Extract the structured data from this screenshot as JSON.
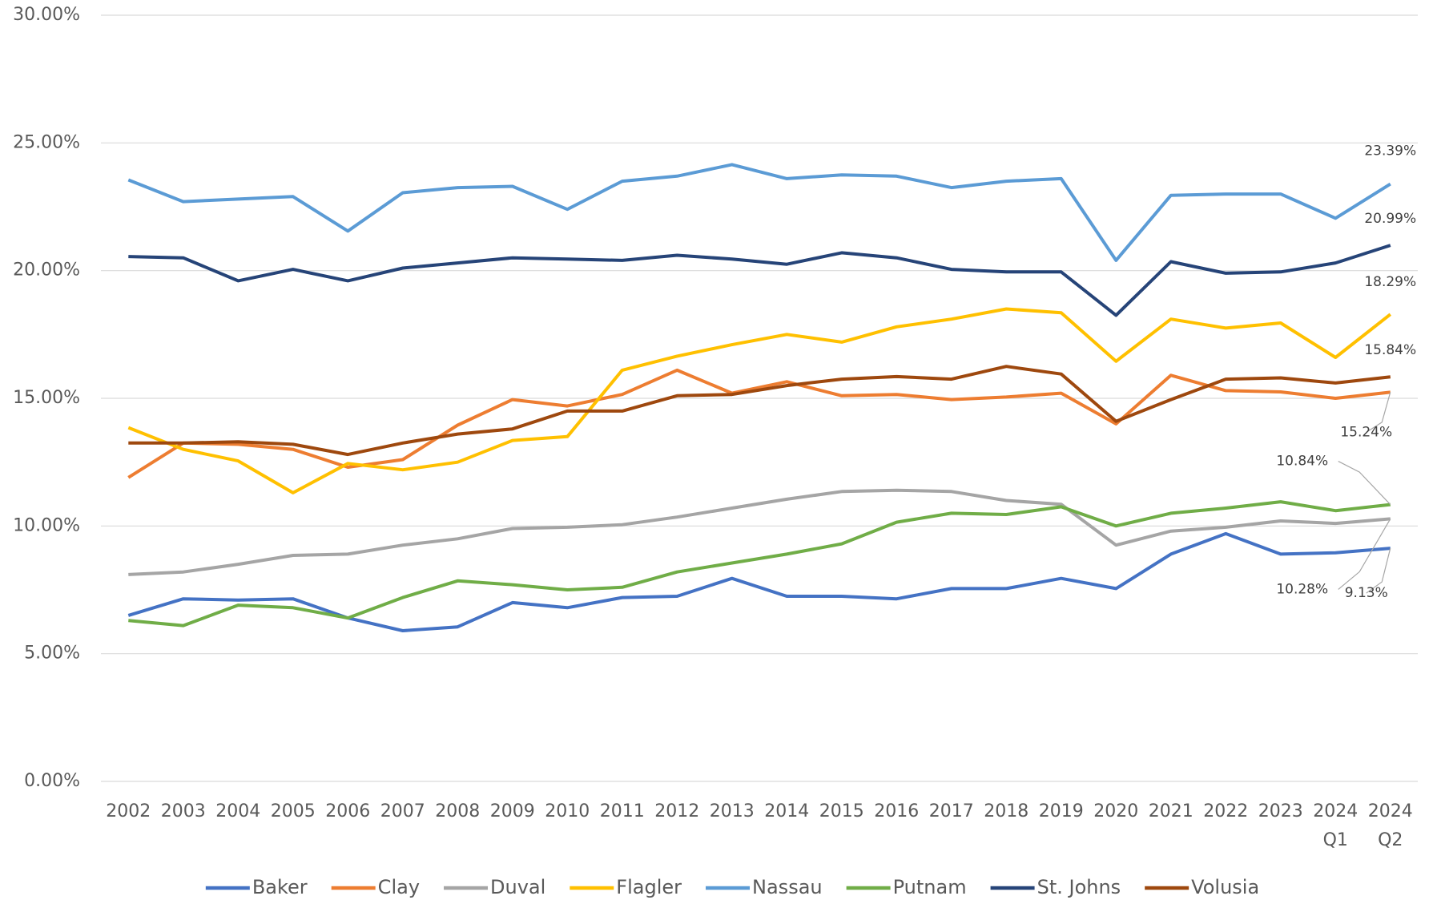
{
  "chart_data": {
    "type": "line",
    "categories": [
      "2002",
      "2003",
      "2004",
      "2005",
      "2006",
      "2007",
      "2008",
      "2009",
      "2010",
      "2011",
      "2012",
      "2013",
      "2014",
      "2015",
      "2016",
      "2017",
      "2018",
      "2019",
      "2020",
      "2021",
      "2022",
      "2023",
      [
        "2024",
        "Q1"
      ],
      [
        "2024",
        "Q2"
      ]
    ],
    "ylim": [
      0,
      30
    ],
    "yticks": [
      {
        "value": 0,
        "label": "0.00%"
      },
      {
        "value": 5,
        "label": "5.00%"
      },
      {
        "value": 10,
        "label": "10.00%"
      },
      {
        "value": 15,
        "label": "15.00%"
      },
      {
        "value": 20,
        "label": "20.00%"
      },
      {
        "value": 25,
        "label": "25.00%"
      },
      {
        "value": 30,
        "label": "30.00%"
      }
    ],
    "grid": true,
    "legend": "bottom",
    "series": [
      {
        "name": "Baker",
        "color": "#4472c4",
        "values": [
          6.5,
          7.15,
          7.1,
          7.15,
          6.4,
          5.9,
          6.05,
          7.0,
          6.8,
          7.2,
          7.25,
          7.95,
          7.25,
          7.25,
          7.15,
          7.55,
          7.55,
          7.95,
          7.55,
          8.9,
          9.7,
          8.9,
          8.95,
          9.13
        ],
        "value_labels": [
          null,
          null,
          null,
          null,
          null,
          null,
          null,
          null,
          null,
          null,
          null,
          null,
          null,
          null,
          null,
          null,
          null,
          null,
          null,
          null,
          null,
          null,
          null,
          "9.13%"
        ]
      },
      {
        "name": "Clay",
        "color": "#ed7d31",
        "values": [
          11.9,
          13.25,
          13.2,
          13.0,
          12.3,
          12.6,
          13.95,
          14.95,
          14.7,
          15.15,
          16.1,
          15.2,
          15.65,
          15.1,
          15.15,
          14.95,
          15.05,
          15.2,
          14.0,
          15.9,
          15.3,
          15.25,
          15.0,
          15.24
        ],
        "value_labels": [
          null,
          null,
          null,
          null,
          null,
          null,
          null,
          null,
          null,
          null,
          null,
          null,
          null,
          null,
          null,
          null,
          null,
          null,
          null,
          null,
          null,
          null,
          null,
          "15.24%"
        ]
      },
      {
        "name": "Duval",
        "color": "#a5a5a5",
        "values": [
          8.1,
          8.2,
          8.5,
          8.85,
          8.9,
          9.25,
          9.5,
          9.9,
          9.95,
          10.05,
          10.35,
          10.7,
          11.05,
          11.35,
          11.4,
          11.35,
          11.0,
          10.85,
          9.25,
          9.8,
          9.95,
          10.2,
          10.1,
          10.28
        ],
        "value_labels": [
          null,
          null,
          null,
          null,
          null,
          null,
          null,
          null,
          null,
          null,
          null,
          null,
          null,
          null,
          null,
          null,
          null,
          null,
          null,
          null,
          null,
          null,
          null,
          "10.28%"
        ]
      },
      {
        "name": "Flagler",
        "color": "#ffc000",
        "values": [
          13.85,
          13.0,
          12.55,
          11.3,
          12.45,
          12.2,
          12.5,
          13.35,
          13.5,
          16.1,
          16.65,
          17.1,
          17.5,
          17.2,
          17.8,
          18.1,
          18.5,
          18.35,
          16.45,
          18.1,
          17.75,
          17.95,
          16.6,
          18.29
        ],
        "value_labels": [
          null,
          null,
          null,
          null,
          null,
          null,
          null,
          null,
          null,
          null,
          null,
          null,
          null,
          null,
          null,
          null,
          null,
          null,
          null,
          null,
          null,
          null,
          null,
          "18.29%"
        ]
      },
      {
        "name": "Nassau",
        "color": "#5b9bd5",
        "values": [
          23.55,
          22.7,
          22.8,
          22.9,
          21.55,
          23.05,
          23.25,
          23.3,
          22.4,
          23.5,
          23.7,
          24.15,
          23.6,
          23.75,
          23.7,
          23.25,
          23.5,
          23.6,
          20.4,
          22.95,
          23.0,
          23.0,
          22.05,
          23.39
        ],
        "value_labels": [
          null,
          null,
          null,
          null,
          null,
          null,
          null,
          null,
          null,
          null,
          null,
          null,
          null,
          null,
          null,
          null,
          null,
          null,
          null,
          null,
          null,
          null,
          null,
          "23.39%"
        ]
      },
      {
        "name": "Putnam",
        "color": "#70ad47",
        "values": [
          6.3,
          6.1,
          6.9,
          6.8,
          6.4,
          7.2,
          7.85,
          7.7,
          7.5,
          7.6,
          8.2,
          8.55,
          8.9,
          9.3,
          10.15,
          10.5,
          10.45,
          10.75,
          10.0,
          10.5,
          10.7,
          10.95,
          10.6,
          10.84
        ],
        "value_labels": [
          null,
          null,
          null,
          null,
          null,
          null,
          null,
          null,
          null,
          null,
          null,
          null,
          null,
          null,
          null,
          null,
          null,
          null,
          null,
          null,
          null,
          null,
          null,
          "10.84%"
        ]
      },
      {
        "name": "St. Johns",
        "color": "#264478",
        "values": [
          20.55,
          20.5,
          19.6,
          20.05,
          19.6,
          20.1,
          20.3,
          20.5,
          20.45,
          20.4,
          20.6,
          20.45,
          20.25,
          20.7,
          20.5,
          20.05,
          19.95,
          19.95,
          18.25,
          20.35,
          19.9,
          19.95,
          20.3,
          20.99
        ],
        "value_labels": [
          null,
          null,
          null,
          null,
          null,
          null,
          null,
          null,
          null,
          null,
          null,
          null,
          null,
          null,
          null,
          null,
          null,
          null,
          null,
          null,
          null,
          null,
          null,
          "20.99%"
        ]
      },
      {
        "name": "Volusia",
        "color": "#9e480e",
        "values": [
          13.25,
          13.25,
          13.3,
          13.2,
          12.8,
          13.25,
          13.6,
          13.8,
          14.5,
          14.5,
          15.1,
          15.15,
          15.5,
          15.75,
          15.85,
          15.75,
          16.25,
          15.95,
          14.1,
          14.95,
          15.75,
          15.8,
          15.6,
          15.84
        ],
        "value_labels": [
          null,
          null,
          null,
          null,
          null,
          null,
          null,
          null,
          null,
          null,
          null,
          null,
          null,
          null,
          null,
          null,
          null,
          null,
          null,
          null,
          null,
          null,
          null,
          "15.84%"
        ]
      }
    ]
  }
}
